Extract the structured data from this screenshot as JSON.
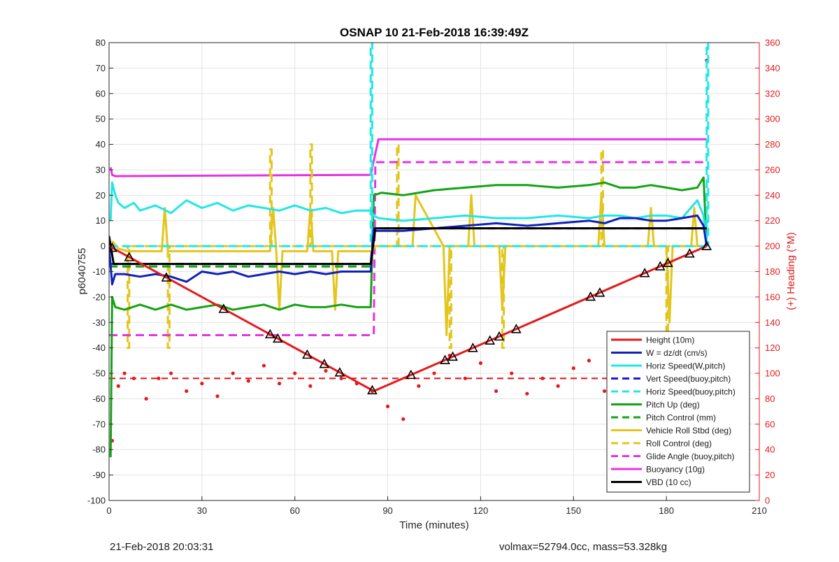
{
  "chart_data": {
    "type": "line",
    "title": "OSNAP 10 21-Feb-2018 16:39:49Z",
    "xlabel": "Time (minutes)",
    "ylabel": "p6040755",
    "ylabel_right": "(+) Heading (°M)",
    "xlim": [
      0,
      210
    ],
    "ylim": [
      -100,
      80
    ],
    "ylim_right": [
      0,
      360
    ],
    "xticks": [
      "0",
      "30",
      "60",
      "90",
      "120",
      "150",
      "180",
      "210"
    ],
    "yticks": [
      "-100",
      "-90",
      "-80",
      "-70",
      "-60",
      "-50",
      "-40",
      "-30",
      "-20",
      "-10",
      "0",
      "10",
      "20",
      "30",
      "40",
      "50",
      "60",
      "70",
      "80"
    ],
    "yticks_right": [
      "0",
      "20",
      "40",
      "60",
      "80",
      "100",
      "120",
      "140",
      "160",
      "180",
      "200",
      "220",
      "240",
      "260",
      "280",
      "300",
      "320",
      "340",
      "360"
    ],
    "grid": true,
    "legend_position": "bottom-right",
    "series": [
      {
        "name": "Height (10m)",
        "color": "#e41a1c",
        "style": "solid",
        "marker": "triangle",
        "x": [
          0,
          85.5,
          193
        ],
        "y": [
          0,
          -57,
          0
        ]
      },
      {
        "name": "W = dz/dt (cm/s)",
        "color": "#1021b8",
        "style": "solid",
        "x": [
          0,
          1,
          2,
          5,
          10,
          15,
          20,
          25,
          30,
          35,
          40,
          45,
          50,
          55,
          60,
          65,
          70,
          75,
          80,
          84.5,
          85.5,
          87,
          95,
          105,
          115,
          125,
          135,
          145,
          155,
          160,
          165,
          170,
          175,
          180,
          185,
          190,
          192,
          193
        ],
        "y": [
          0,
          -15,
          -11,
          -11,
          -12,
          -11,
          -12,
          -14,
          -10,
          -11,
          -10,
          -12,
          -11,
          -10,
          -11,
          -10,
          -11,
          -10,
          -10,
          -10,
          6,
          6,
          6,
          7,
          8,
          9,
          8,
          9,
          10,
          9,
          11,
          11,
          10,
          10,
          11,
          12,
          8,
          0
        ]
      },
      {
        "name": "Horiz Speed(W,pitch)",
        "color": "#22e6e6",
        "style": "solid",
        "x": [
          0.5,
          1,
          2,
          3,
          5,
          8,
          10,
          15,
          20,
          25,
          30,
          35,
          40,
          45,
          50,
          55,
          60,
          65,
          70,
          75,
          80,
          84.5,
          85.5,
          87,
          95,
          105,
          115,
          125,
          135,
          145,
          155,
          160,
          165,
          170,
          175,
          180,
          185,
          190,
          192,
          193
        ],
        "y": [
          10,
          25,
          20,
          17,
          15,
          17,
          14,
          16,
          13,
          18,
          15,
          17,
          14,
          16,
          15,
          14,
          16,
          14,
          15,
          13,
          14,
          14,
          12,
          11,
          10,
          11,
          12,
          11,
          11,
          12,
          11,
          12,
          12,
          11,
          12,
          12,
          11,
          18,
          12,
          0
        ]
      },
      {
        "name": "Vert Speed(buoy,pitch)",
        "color": "#1a1ad8",
        "style": "dashed",
        "x": [
          0,
          84.5,
          85.5,
          193
        ],
        "y": [
          -7,
          -7,
          7,
          7
        ]
      },
      {
        "name": "Horiz Speed(buoy,pitch)",
        "color": "#22e6e6",
        "style": "dashed",
        "x": [
          0,
          84.5,
          84.5,
          85,
          85,
          193,
          193,
          193.5,
          193.5
        ],
        "y": [
          0,
          0,
          80,
          80,
          0,
          0,
          80,
          80,
          0
        ]
      },
      {
        "name": "Pitch Up (deg)",
        "color": "#14a314",
        "style": "solid",
        "x": [
          0.5,
          1,
          2,
          5,
          10,
          15,
          20,
          25,
          30,
          35,
          40,
          45,
          50,
          55,
          60,
          65,
          70,
          75,
          80,
          84.5,
          85.5,
          88,
          95,
          105,
          115,
          125,
          135,
          145,
          155,
          160,
          165,
          170,
          175,
          180,
          185,
          190,
          192,
          193
        ],
        "y": [
          -83,
          -20,
          -24,
          -25,
          -23,
          -25,
          -23,
          -25,
          -24,
          -23,
          -25,
          -24,
          -23,
          -25,
          -23,
          -24,
          -24,
          -23,
          -24,
          -24,
          20,
          21,
          20,
          22,
          23,
          24,
          24,
          23,
          24,
          25,
          23,
          23,
          24,
          23,
          22,
          23,
          27,
          0
        ]
      },
      {
        "name": "Pitch Control (mm)",
        "color": "#14a314",
        "style": "dashed",
        "x": [
          0,
          84.5,
          85.5,
          193
        ],
        "y": [
          -8,
          -8,
          7,
          7
        ]
      },
      {
        "name": "Vehicle Roll Stbd (deg)",
        "color": "#e3c51b",
        "style": "solid",
        "x": [
          1,
          3,
          6,
          17,
          18,
          19,
          52,
          53,
          54,
          55,
          56,
          64,
          65,
          66,
          72,
          73,
          74,
          85,
          86,
          98,
          99,
          108,
          109,
          110,
          116,
          117,
          118,
          126,
          127,
          128,
          158,
          159,
          160,
          174,
          175,
          176,
          180,
          181,
          182,
          188,
          189,
          190,
          193
        ],
        "y": [
          2,
          -1,
          -2,
          -2,
          15,
          -2,
          -2,
          15,
          -2,
          -25,
          -2,
          -2,
          15,
          -2,
          -2,
          -25,
          -2,
          -2,
          0,
          0,
          20,
          0,
          -35,
          0,
          0,
          20,
          0,
          0,
          -25,
          0,
          0,
          20,
          0,
          0,
          15,
          0,
          0,
          -30,
          0,
          0,
          15,
          0,
          0
        ]
      },
      {
        "name": "Roll Control (deg)",
        "color": "#e3c51b",
        "style": "dashed",
        "x": [
          0,
          6,
          6,
          6.5,
          6.5,
          19,
          19,
          19.5,
          19.5,
          52,
          52,
          52.5,
          52.5,
          65,
          65,
          65.5,
          65.5,
          93,
          93,
          93.5,
          93.5,
          110,
          110,
          110.5,
          110.5,
          127,
          127,
          127.5,
          127.5,
          159,
          159,
          159.5,
          159.5,
          180,
          180,
          180.5,
          180.5,
          193
        ],
        "y": [
          0,
          0,
          -40,
          -40,
          0,
          0,
          -40,
          -40,
          0,
          0,
          38,
          38,
          0,
          0,
          40,
          40,
          0,
          0,
          40,
          40,
          0,
          0,
          -40,
          -40,
          0,
          0,
          -40,
          -40,
          0,
          0,
          38,
          38,
          0,
          0,
          -40,
          -40,
          0,
          0
        ]
      },
      {
        "name": "Glide Angle (buoy,pitch)",
        "color": "#e533e5",
        "style": "dashed",
        "x": [
          0,
          84.5,
          85.5,
          86,
          193
        ],
        "y": [
          -35,
          -35,
          -35,
          33,
          33
        ]
      },
      {
        "name": "Buoyancy (10g)",
        "color": "#e533e5",
        "style": "solid",
        "x": [
          0.5,
          1,
          2,
          84.5,
          87,
          193
        ],
        "y": [
          31,
          28,
          27.5,
          28,
          42,
          42
        ]
      },
      {
        "name": "VBD (10 cc)",
        "color": "#000000",
        "style": "solid",
        "x": [
          0,
          1.5,
          2,
          84.5,
          86,
          193
        ],
        "y": [
          4,
          -7,
          -7,
          -7,
          7,
          7
        ]
      }
    ],
    "heading": {
      "axis": "right",
      "color": "#e41a1c",
      "mean_deg": 96,
      "x": [
        1,
        3,
        5,
        8,
        12,
        16,
        20,
        25,
        30,
        35,
        40,
        45,
        50,
        55,
        60,
        65,
        70,
        75,
        80,
        85,
        90,
        95,
        100,
        105,
        110,
        115,
        120,
        125,
        130,
        135,
        140,
        145,
        150,
        155,
        160,
        165,
        170,
        175,
        180,
        185,
        190,
        193
      ],
      "y": [
        47,
        90,
        100,
        96,
        80,
        96,
        100,
        86,
        92,
        82,
        100,
        94,
        106,
        92,
        100,
        90,
        102,
        96,
        92,
        86,
        74,
        64,
        90,
        100,
        114,
        96,
        108,
        86,
        100,
        84,
        96,
        90,
        104,
        110,
        86,
        100,
        96,
        90,
        102,
        96,
        98,
        346
      ]
    }
  },
  "footer": {
    "left": "21-Feb-2018 20:03:31",
    "right": "volmax=52794.0cc, mass=53.328kg"
  }
}
